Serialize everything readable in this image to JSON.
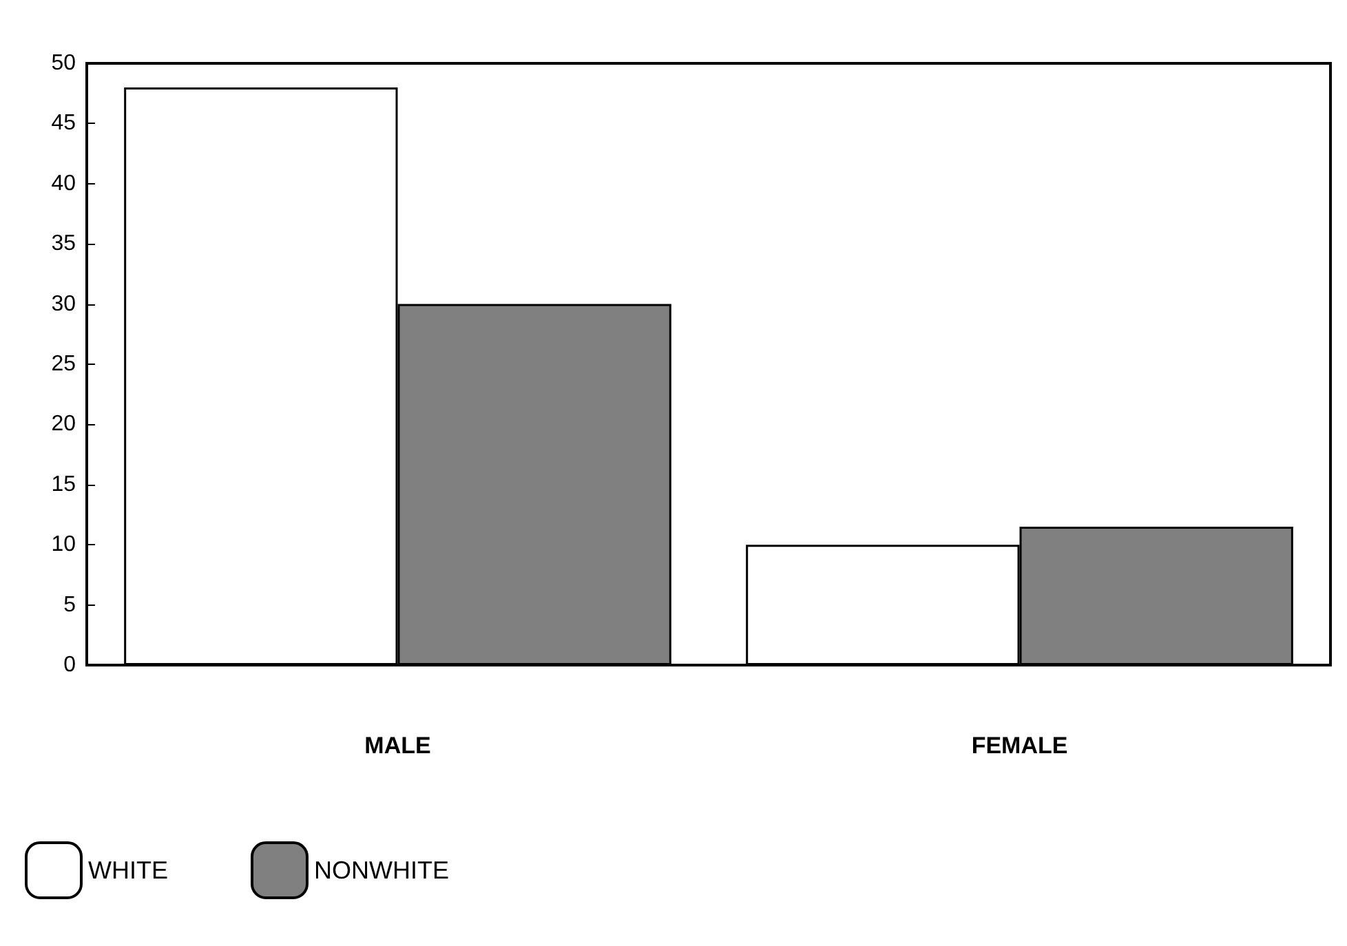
{
  "chart_data": {
    "type": "bar",
    "categories": [
      "MALE",
      "FEMALE"
    ],
    "series": [
      {
        "name": "WHITE",
        "color": "#ffffff",
        "values": [
          48,
          10
        ]
      },
      {
        "name": "NONWHITE",
        "color": "#808080",
        "values": [
          30,
          11.5
        ]
      }
    ],
    "ylim": [
      0,
      50
    ],
    "yticks": [
      0,
      5,
      10,
      15,
      20,
      25,
      30,
      35,
      40,
      45,
      50
    ],
    "grid": false,
    "legend": "bottom left"
  }
}
